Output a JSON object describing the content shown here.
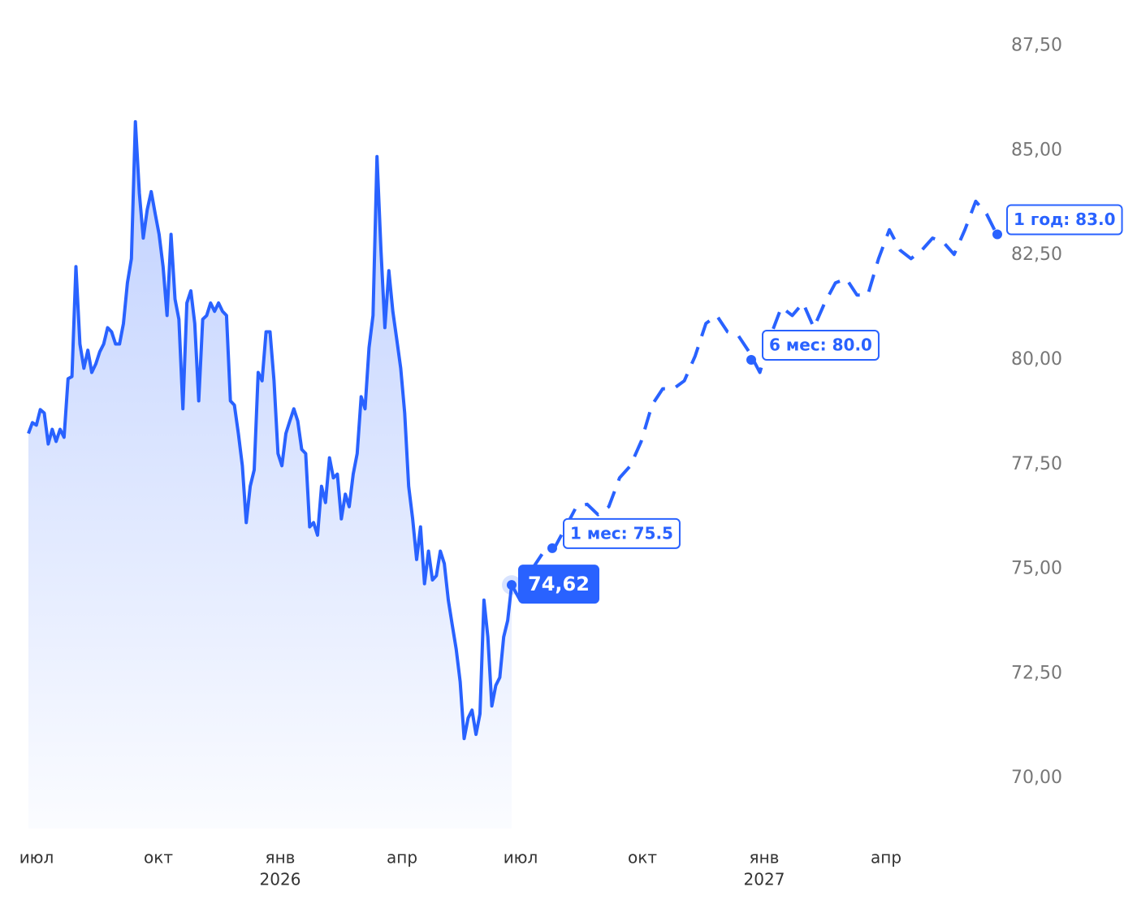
{
  "chart_data": {
    "type": "line",
    "ylim": [
      68.8,
      88.6
    ],
    "yticks": [
      {
        "value": 70,
        "label": "70,00"
      },
      {
        "value": 72.5,
        "label": "72,50"
      },
      {
        "value": 75,
        "label": "75,00"
      },
      {
        "value": 77.5,
        "label": "77,50"
      },
      {
        "value": 80,
        "label": "80,00"
      },
      {
        "value": 82.5,
        "label": "82,50"
      },
      {
        "value": 85,
        "label": "85,00"
      },
      {
        "value": 87.5,
        "label": "87,50"
      }
    ],
    "xticks": [
      "июл",
      "окт",
      "янв",
      "апр",
      "июл",
      "окт",
      "янв",
      "апр"
    ],
    "xtick_years": [
      null,
      null,
      "2026",
      null,
      null,
      null,
      "2027",
      null
    ],
    "series": [
      {
        "color": "#2962ff",
        "values": [
          78.24,
          78.5,
          78.44,
          78.81,
          78.73,
          77.99,
          78.34,
          78.05,
          78.34,
          78.15,
          79.55,
          79.6,
          82.23,
          80.38,
          79.8,
          80.23,
          79.7,
          79.9,
          80.19,
          80.38,
          80.77,
          80.67,
          80.38,
          80.38,
          80.87,
          81.84,
          82.42,
          85.69,
          83.98,
          82.91,
          83.59,
          84.02,
          83.49,
          83.0,
          82.23,
          81.06,
          83.0,
          81.45,
          80.97,
          78.83,
          81.36,
          81.65,
          80.87,
          79.02,
          80.97,
          81.06,
          81.36,
          81.16,
          81.36,
          81.16,
          81.06,
          79.02,
          78.92,
          78.24,
          77.47,
          76.11,
          76.98,
          77.37,
          79.7,
          79.5,
          80.67,
          80.67,
          79.5,
          77.76,
          77.47,
          78.24,
          78.54,
          78.83,
          78.54,
          77.86,
          77.76,
          76.01,
          76.11,
          75.81,
          76.98,
          76.59,
          77.66,
          77.18,
          77.27,
          76.2,
          76.79,
          76.49,
          77.27,
          77.76,
          79.12,
          78.83,
          80.29,
          81.06,
          84.86,
          82.62,
          80.77,
          82.13,
          81.16,
          80.48,
          79.8,
          78.73,
          76.98,
          76.2,
          75.23,
          76.01,
          74.65,
          75.43,
          74.74,
          74.84,
          75.43,
          75.13,
          74.26,
          73.67,
          73.09,
          72.31,
          70.95,
          71.44,
          71.63,
          71.05,
          71.54,
          74.26,
          73.38,
          71.73,
          72.22,
          72.41,
          73.38,
          73.77,
          74.62
        ]
      },
      {
        "color": "#2962ff",
        "dashed": true,
        "values": [
          74.62,
          74.16,
          75.04,
          75.43,
          75.52,
          76.0,
          76.49,
          76.55,
          76.3,
          76.49,
          77.18,
          77.47,
          78.05,
          78.92,
          79.31,
          79.31,
          79.5,
          80.09,
          80.87,
          81.06,
          80.67,
          80.58,
          80.19,
          79.7,
          80.58,
          81.26,
          81.06,
          81.36,
          80.77,
          81.36,
          81.84,
          81.94,
          81.55,
          81.55,
          82.42,
          83.11,
          82.62,
          82.42,
          82.62,
          82.91,
          82.81,
          82.52,
          83.11,
          83.79,
          83.49,
          82.97
        ]
      }
    ],
    "current": {
      "value": 74.62,
      "label": "74,62"
    },
    "annotations": [
      {
        "value": 75.5,
        "label": "1 мес: 75.5"
      },
      {
        "value": 80.0,
        "label": "6 мес: 80.0"
      },
      {
        "value": 83.0,
        "label": "1 год: 83.0"
      }
    ]
  }
}
